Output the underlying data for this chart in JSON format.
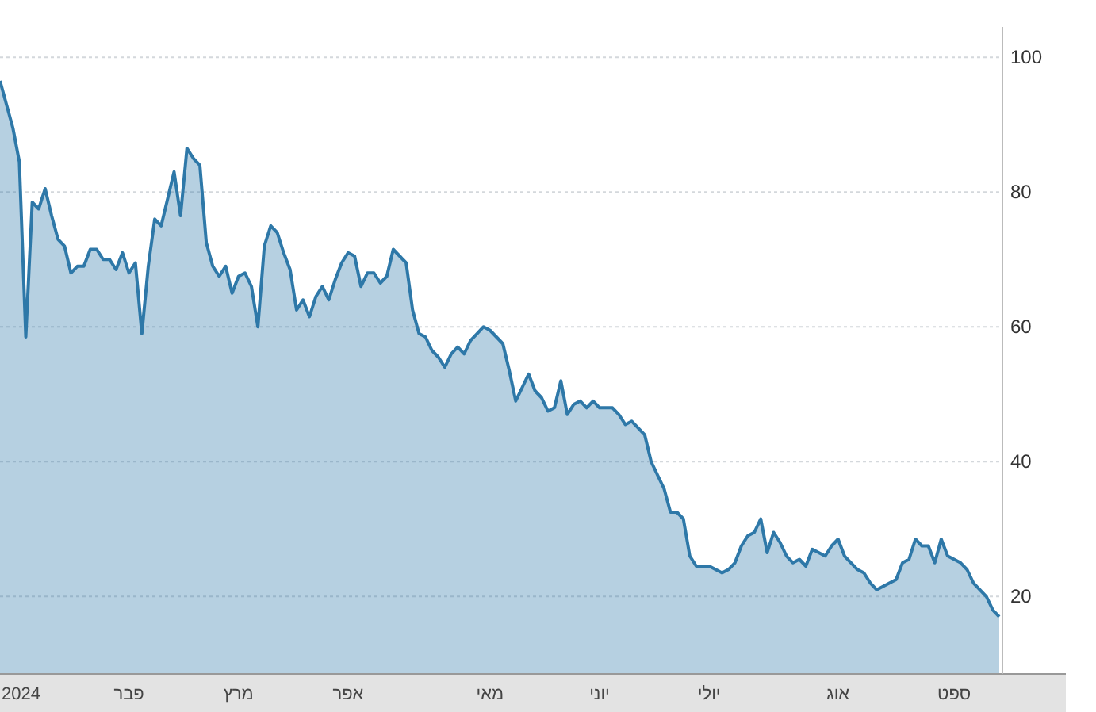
{
  "chart_data": {
    "type": "area",
    "categories": [
      null,
      null,
      null,
      "2024",
      null,
      null,
      null,
      null,
      null,
      null,
      null,
      null,
      null,
      null,
      null,
      null,
      null,
      null,
      null,
      null,
      "פבר",
      null,
      null,
      null,
      null,
      null,
      null,
      null,
      null,
      null,
      null,
      null,
      null,
      null,
      null,
      null,
      null,
      "מרץ",
      null,
      null,
      null,
      null,
      null,
      null,
      null,
      null,
      null,
      null,
      null,
      null,
      null,
      null,
      null,
      null,
      "אפר",
      null,
      null,
      null,
      null,
      null,
      null,
      null,
      null,
      null,
      null,
      null,
      null,
      null,
      null,
      null,
      null,
      null,
      null,
      null,
      null,
      null,
      "מאי",
      null,
      null,
      null,
      null,
      null,
      null,
      null,
      null,
      null,
      null,
      null,
      null,
      null,
      null,
      null,
      null,
      "יוני",
      null,
      null,
      null,
      null,
      null,
      null,
      null,
      null,
      null,
      null,
      null,
      null,
      null,
      null,
      null,
      null,
      "יולי",
      null,
      null,
      null,
      null,
      null,
      null,
      null,
      null,
      null,
      null,
      null,
      null,
      null,
      null,
      null,
      null,
      null,
      null,
      null,
      "אוג",
      null,
      null,
      null,
      null,
      null,
      null,
      null,
      null,
      null,
      null,
      null,
      null,
      null,
      null,
      null,
      null,
      null,
      "ספט",
      null,
      null,
      null,
      null,
      null,
      null,
      null
    ],
    "series": [
      {
        "color": "#2e78a8",
        "values": [
          96.5,
          93,
          89.5,
          84.5,
          58.5,
          78.5,
          77.5,
          80.5,
          76.5,
          73,
          72,
          68,
          69,
          69,
          71.5,
          71.5,
          70,
          70,
          68.5,
          71,
          68,
          69.5,
          59,
          69,
          76,
          75,
          79,
          83,
          76.5,
          86.5,
          85,
          84,
          72.5,
          69,
          67.5,
          69,
          65,
          67.5,
          68,
          66,
          60,
          72,
          75,
          74,
          71,
          68.5,
          62.5,
          64,
          61.5,
          64.5,
          66,
          64,
          67,
          69.5,
          71,
          70.5,
          66,
          68,
          68,
          66.5,
          67.5,
          71.5,
          70.5,
          69.5,
          62.5,
          59,
          58.5,
          56.5,
          55.5,
          54,
          56,
          57,
          56,
          58,
          59,
          60,
          59.5,
          58.5,
          57.5,
          53.5,
          49,
          51,
          53,
          50.5,
          49.5,
          47.5,
          48,
          52,
          47,
          48.5,
          49,
          48,
          49,
          48,
          48,
          48,
          47,
          45.5,
          46,
          45,
          44,
          40,
          38,
          36,
          32.5,
          32.5,
          31.5,
          26,
          24.5,
          24.5,
          24.5,
          24,
          23.5,
          24,
          25,
          27.5,
          29,
          29.5,
          31.5,
          26.5,
          29.5,
          28,
          26,
          25,
          25.5,
          24.5,
          27,
          26.5,
          26,
          27.5,
          28.5,
          26,
          25,
          24,
          23.5,
          22,
          21,
          21.5,
          22,
          22.5,
          25,
          25.5,
          28.5,
          27.5,
          27.5,
          25,
          28.5,
          26,
          25.5,
          25,
          24,
          22,
          21,
          20,
          18,
          17
        ]
      }
    ],
    "ylim": [
      8.5,
      104.5
    ],
    "yticks": [
      20,
      40,
      60,
      80,
      100
    ],
    "grid": "y"
  }
}
